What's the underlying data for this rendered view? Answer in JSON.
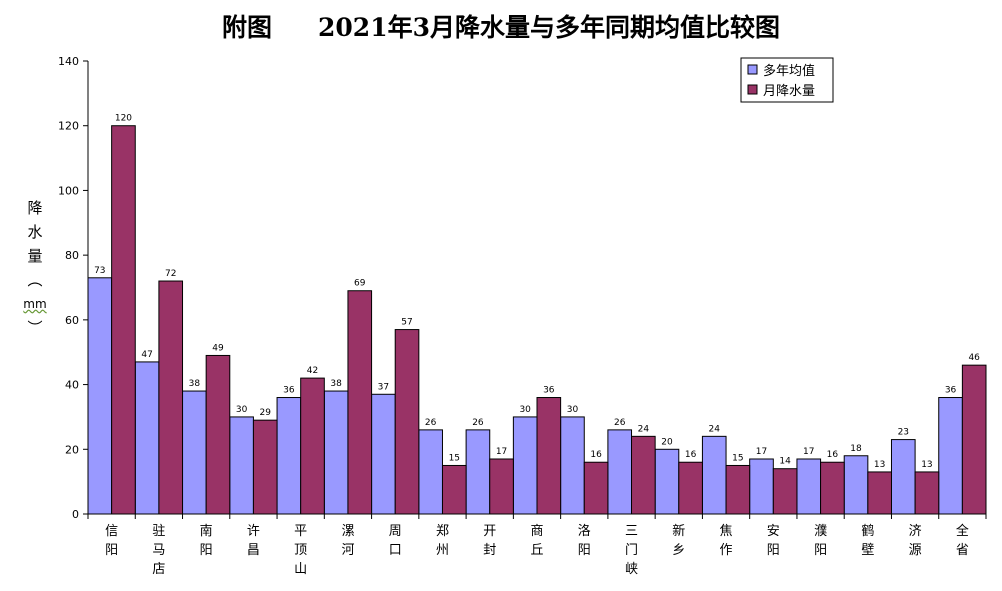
{
  "title_prefix": "附图",
  "title_main": "2021年3月降水量与多年同期均值比较图",
  "ylabel": [
    "降",
    "水",
    "量",
    "︵",
    "mm",
    "︶"
  ],
  "colors": {
    "avg": "#9999ff",
    "month": "#993366"
  },
  "chart_data": {
    "type": "bar",
    "categories": [
      [
        "信",
        "阳"
      ],
      [
        "驻",
        "马",
        "店"
      ],
      [
        "南",
        "阳"
      ],
      [
        "许",
        "昌"
      ],
      [
        "平",
        "顶",
        "山"
      ],
      [
        "漯",
        "河"
      ],
      [
        "周",
        "口"
      ],
      [
        "郑",
        "州"
      ],
      [
        "开",
        "封"
      ],
      [
        "商",
        "丘"
      ],
      [
        "洛",
        "阳"
      ],
      [
        "三",
        "门",
        "峡"
      ],
      [
        "新",
        "乡"
      ],
      [
        "焦",
        "作"
      ],
      [
        "安",
        "阳"
      ],
      [
        "濮",
        "阳"
      ],
      [
        "鹤",
        "壁"
      ],
      [
        "济",
        "源"
      ],
      [
        "全",
        "省"
      ]
    ],
    "series": [
      {
        "name": "多年均值",
        "values": [
          73,
          47,
          38,
          30,
          36,
          38,
          37,
          26,
          26,
          30,
          30,
          26,
          20,
          24,
          17,
          17,
          18,
          23,
          36
        ]
      },
      {
        "name": "月降水量",
        "values": [
          120,
          72,
          49,
          29,
          42,
          69,
          57,
          15,
          17,
          36,
          16,
          24,
          16,
          15,
          14,
          16,
          13,
          13,
          46
        ]
      }
    ],
    "ylim": [
      0,
      140
    ],
    "yticks": [
      0,
      20,
      40,
      60,
      80,
      100,
      120,
      140
    ],
    "legend_position": "top-right",
    "grid": false
  }
}
